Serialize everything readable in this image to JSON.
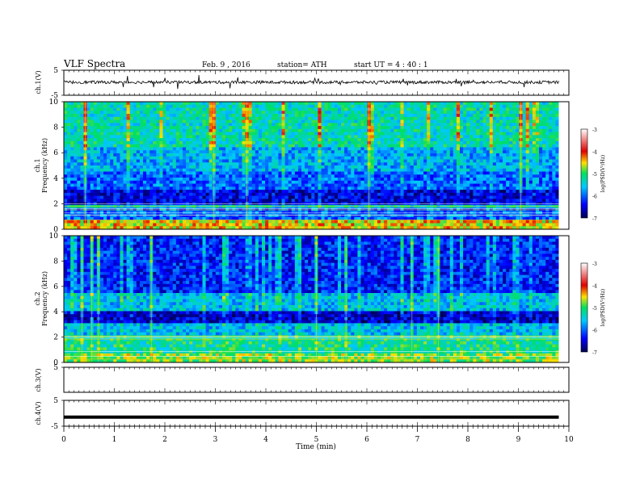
{
  "header": {
    "title": "VLF Spectra",
    "date": "Feb. 9 , 2016",
    "station": "station= ATH",
    "start": "start  UT  =  4 : 40 : 1"
  },
  "chart_data": [
    {
      "type": "line",
      "panel": "ch1-waveform",
      "ylabel": "ch.1(V)",
      "ylim": [
        -5,
        5
      ],
      "yticks": [
        "5",
        "-5"
      ],
      "baseline": 0.2,
      "trace_end_min": 9.8
    },
    {
      "type": "heatmap",
      "panel": "ch1-spectrogram",
      "ylabel": "ch.1\nFrequency  (kHz)",
      "ylim": [
        0,
        10
      ],
      "yticks": [
        "0",
        "2",
        "4",
        "6",
        "8",
        "10"
      ],
      "data_end_min": 9.8,
      "band_levels": [
        {
          "freq": [
            0,
            0.8
          ],
          "level": -4.5
        },
        {
          "freq": [
            0.8,
            1.6
          ],
          "level": -6.0
        },
        {
          "freq": [
            1.6,
            2.0
          ],
          "level": -5.4
        },
        {
          "freq": [
            2.0,
            3.0
          ],
          "level": -6.5
        },
        {
          "freq": [
            3.0,
            4.5
          ],
          "level": -6.0
        },
        {
          "freq": [
            4.5,
            6.5
          ],
          "level": -5.7
        },
        {
          "freq": [
            6.5,
            10.0
          ],
          "level": -5.3
        }
      ]
    },
    {
      "type": "heatmap",
      "panel": "ch2-spectrogram",
      "ylabel": "ch.2\nFrequency  (kHz)",
      "ylim": [
        0,
        10
      ],
      "yticks": [
        "0",
        "2",
        "4",
        "6",
        "8",
        "10"
      ],
      "data_end_min": 9.8,
      "band_levels": [
        {
          "freq": [
            0,
            0.6
          ],
          "level": -4.8
        },
        {
          "freq": [
            0.6,
            2.2
          ],
          "level": -5.2
        },
        {
          "freq": [
            2.2,
            3.0
          ],
          "level": -5.6
        },
        {
          "freq": [
            3.0,
            4.0
          ],
          "level": -6.6
        },
        {
          "freq": [
            4.0,
            5.5
          ],
          "level": -5.6
        },
        {
          "freq": [
            5.5,
            10.0
          ],
          "level": -6.3
        }
      ]
    },
    {
      "type": "line",
      "panel": "ch3-waveform",
      "ylabel": "ch.3(V)",
      "ylim": [
        -5,
        5
      ],
      "yticks": [
        "5"
      ],
      "baseline": 5,
      "trace_end_min": 9.8
    },
    {
      "type": "line",
      "panel": "ch4-waveform",
      "ylabel": "ch.4(V)",
      "ylim": [
        -5,
        5
      ],
      "yticks": [
        "5",
        "-5"
      ],
      "baseline": -1.5,
      "trace_end_min": 9.8
    }
  ],
  "x_axis": {
    "label": "Time  (min)",
    "range": [
      0,
      10
    ],
    "ticks": [
      "0",
      "1",
      "2",
      "3",
      "4",
      "5",
      "6",
      "7",
      "8",
      "9",
      "10"
    ]
  },
  "colorbar": {
    "label": "log(PSD(V²/Hz)",
    "range": [
      -7,
      -3
    ],
    "ticks": [
      "-3",
      "-4",
      "-5",
      "-6",
      "-7"
    ]
  },
  "colors": {
    "low": "#00008b",
    "mid": "#00c8ff",
    "green": "#00e060",
    "yellow": "#ffe000",
    "red": "#e00000",
    "high": "#ffffff"
  }
}
